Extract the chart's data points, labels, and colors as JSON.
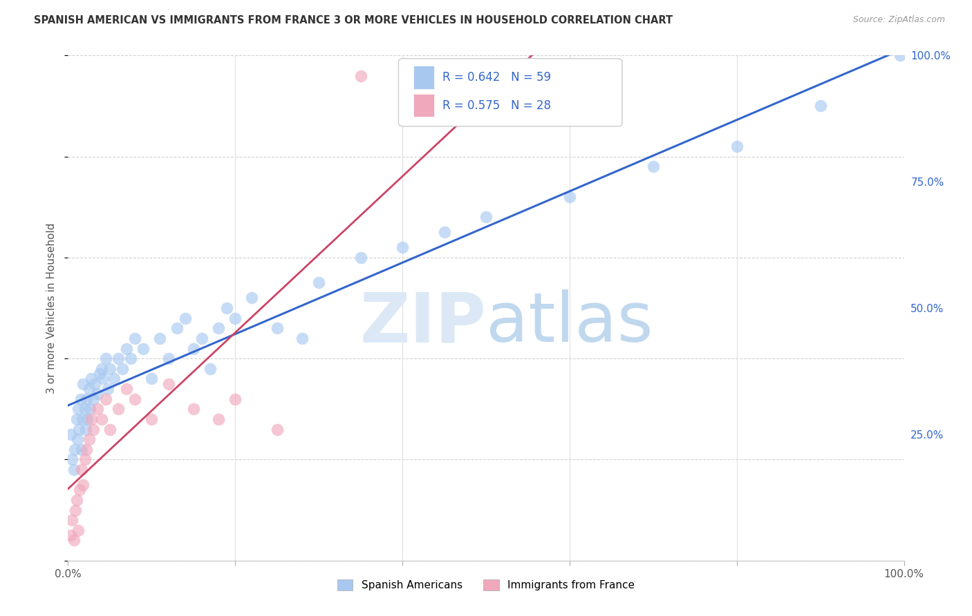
{
  "title": "SPANISH AMERICAN VS IMMIGRANTS FROM FRANCE 3 OR MORE VEHICLES IN HOUSEHOLD CORRELATION CHART",
  "source": "Source: ZipAtlas.com",
  "ylabel_label": "3 or more Vehicles in Household",
  "r_blue": 0.642,
  "n_blue": 59,
  "r_pink": 0.575,
  "n_pink": 28,
  "blue_color": "#a8c8f0",
  "pink_color": "#f0a8bc",
  "line_blue": "#3366cc",
  "line_pink": "#cc4466",
  "blue_scatter_x": [
    0.3,
    0.5,
    0.7,
    0.8,
    1.0,
    1.1,
    1.2,
    1.3,
    1.5,
    1.6,
    1.7,
    1.8,
    2.0,
    2.1,
    2.2,
    2.3,
    2.5,
    2.6,
    2.8,
    3.0,
    3.2,
    3.5,
    3.8,
    4.0,
    4.2,
    4.5,
    4.8,
    5.0,
    5.5,
    6.0,
    6.5,
    7.0,
    7.5,
    8.0,
    9.0,
    10.0,
    11.0,
    12.0,
    13.0,
    14.0,
    15.0,
    16.0,
    17.0,
    18.0,
    19.0,
    20.0,
    22.0,
    25.0,
    28.0,
    30.0,
    35.0,
    40.0,
    45.0,
    50.0,
    60.0,
    70.0,
    80.0,
    90.0,
    99.5
  ],
  "blue_scatter_y": [
    25.0,
    20.0,
    18.0,
    22.0,
    28.0,
    24.0,
    30.0,
    26.0,
    32.0,
    22.0,
    28.0,
    35.0,
    30.0,
    26.0,
    32.0,
    28.0,
    34.0,
    30.0,
    36.0,
    32.0,
    35.0,
    33.0,
    37.0,
    38.0,
    36.0,
    40.0,
    34.0,
    38.0,
    36.0,
    40.0,
    38.0,
    42.0,
    40.0,
    44.0,
    42.0,
    36.0,
    44.0,
    40.0,
    46.0,
    48.0,
    42.0,
    44.0,
    38.0,
    46.0,
    50.0,
    48.0,
    52.0,
    46.0,
    44.0,
    55.0,
    60.0,
    62.0,
    65.0,
    68.0,
    72.0,
    78.0,
    82.0,
    90.0,
    100.0
  ],
  "pink_scatter_x": [
    0.3,
    0.5,
    0.7,
    0.9,
    1.0,
    1.2,
    1.4,
    1.6,
    1.8,
    2.0,
    2.2,
    2.5,
    2.8,
    3.0,
    3.5,
    4.0,
    4.5,
    5.0,
    6.0,
    7.0,
    8.0,
    10.0,
    12.0,
    15.0,
    18.0,
    20.0,
    25.0,
    35.0
  ],
  "pink_scatter_y": [
    5.0,
    8.0,
    4.0,
    10.0,
    12.0,
    6.0,
    14.0,
    18.0,
    15.0,
    20.0,
    22.0,
    24.0,
    28.0,
    26.0,
    30.0,
    28.0,
    32.0,
    26.0,
    30.0,
    34.0,
    32.0,
    28.0,
    35.0,
    30.0,
    28.0,
    32.0,
    26.0,
    96.0
  ]
}
